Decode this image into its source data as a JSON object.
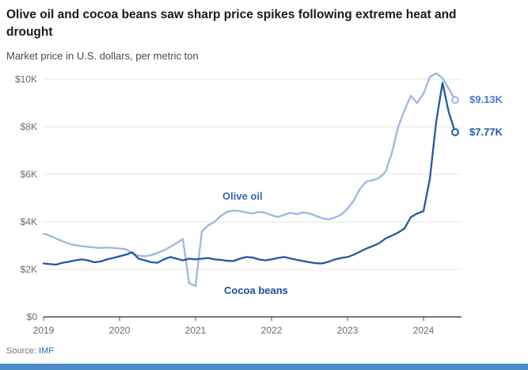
{
  "header": {
    "title": "Olive oil and cocoa beans saw sharp price spikes following extreme heat and drought",
    "subtitle": "Market price in U.S. dollars, per metric ton"
  },
  "source": {
    "label": "Source:",
    "link": "IMF"
  },
  "chart_data": {
    "type": "line",
    "title": "Olive oil and cocoa beans saw sharp price spikes following extreme heat and drought",
    "ylabel": "Market price in U.S. dollars, per metric ton",
    "x_unit": "month",
    "x_start_year": 2019,
    "ylim": [
      0,
      10.5
    ],
    "grid": "horizontal",
    "x_ticks": {
      "labels": [
        "2019",
        "2020",
        "2021",
        "2022",
        "2023",
        "2024"
      ],
      "indices": [
        0,
        12,
        24,
        36,
        48,
        60
      ]
    },
    "y_ticks": {
      "labels": [
        "$0",
        "$2K",
        "$4K",
        "$6K",
        "$8K",
        "$10K"
      ],
      "values": [
        0,
        2,
        4,
        6,
        8,
        10
      ]
    },
    "series": [
      {
        "id": "olive-oil",
        "name": "Olive oil",
        "color": "#9db6e3",
        "label_color": "#3668b8",
        "end_label": "$9.13K",
        "end_label_color": "#4d79c9",
        "end_value": 9.13,
        "values": [
          3.5,
          3.42,
          3.3,
          3.18,
          3.08,
          3.02,
          2.98,
          2.95,
          2.92,
          2.9,
          2.92,
          2.9,
          2.88,
          2.85,
          2.68,
          2.58,
          2.55,
          2.6,
          2.7,
          2.8,
          2.95,
          3.1,
          3.28,
          1.42,
          1.3,
          3.6,
          3.85,
          4.0,
          4.25,
          4.42,
          4.48,
          4.45,
          4.4,
          4.35,
          4.42,
          4.38,
          4.28,
          4.2,
          4.3,
          4.38,
          4.32,
          4.4,
          4.35,
          4.25,
          4.15,
          4.1,
          4.18,
          4.3,
          4.55,
          4.9,
          5.4,
          5.7,
          5.75,
          5.85,
          6.1,
          6.9,
          8.0,
          8.7,
          9.3,
          9.0,
          9.4,
          10.1,
          10.25,
          10.05,
          9.6,
          9.13
        ]
      },
      {
        "id": "cocoa-beans",
        "name": "Cocoa beans",
        "color": "#2457a7",
        "label_color": "#1d4d9e",
        "end_label": "$7.77K",
        "end_label_color": "#2457a7",
        "end_value": 7.77,
        "values": [
          2.25,
          2.22,
          2.2,
          2.28,
          2.32,
          2.38,
          2.42,
          2.38,
          2.3,
          2.33,
          2.42,
          2.48,
          2.55,
          2.62,
          2.72,
          2.45,
          2.38,
          2.3,
          2.28,
          2.42,
          2.52,
          2.45,
          2.38,
          2.45,
          2.42,
          2.45,
          2.48,
          2.42,
          2.4,
          2.36,
          2.35,
          2.45,
          2.52,
          2.5,
          2.42,
          2.38,
          2.42,
          2.48,
          2.52,
          2.46,
          2.4,
          2.35,
          2.3,
          2.26,
          2.25,
          2.32,
          2.42,
          2.48,
          2.52,
          2.62,
          2.75,
          2.88,
          2.98,
          3.1,
          3.3,
          3.42,
          3.55,
          3.72,
          4.2,
          4.35,
          4.45,
          5.8,
          8.2,
          9.85,
          8.6,
          7.77
        ]
      }
    ]
  }
}
